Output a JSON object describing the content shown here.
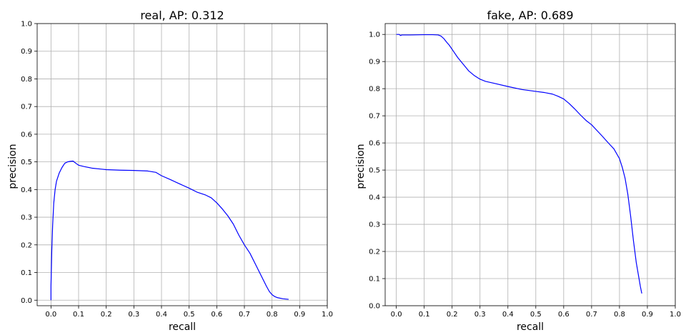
{
  "chart_data": [
    {
      "type": "line",
      "title": "real, AP: 0.312",
      "xlabel": "recall",
      "ylabel": "precision",
      "xlim": [
        -0.05,
        1.0
      ],
      "ylim": [
        -0.02,
        1.0
      ],
      "grid": true,
      "x_ticks": [
        0.0,
        0.1,
        0.2,
        0.3,
        0.4,
        0.5,
        0.6,
        0.7,
        0.8,
        0.9,
        1.0
      ],
      "y_ticks": [
        0.0,
        0.1,
        0.2,
        0.3,
        0.4,
        0.5,
        0.6,
        0.7,
        0.8,
        0.9,
        1.0
      ],
      "x_tick_labels": [
        "0.0",
        "0.1",
        "0.2",
        "0.3",
        "0.4",
        "0.5",
        "0.6",
        "0.7",
        "0.8",
        "0.9",
        "1.0"
      ],
      "y_tick_labels": [
        "0.0",
        "0.1",
        "0.2",
        "0.3",
        "0.4",
        "0.5",
        "0.6",
        "0.7",
        "0.8",
        "0.9",
        "1.0"
      ],
      "series": [
        {
          "color": "#0000ff",
          "x": [
            0.0,
            0.0,
            0.003,
            0.006,
            0.01,
            0.015,
            0.02,
            0.03,
            0.04,
            0.05,
            0.06,
            0.07,
            0.08,
            0.09,
            0.1,
            0.12,
            0.15,
            0.18,
            0.2,
            0.25,
            0.3,
            0.35,
            0.38,
            0.4,
            0.43,
            0.46,
            0.5,
            0.53,
            0.56,
            0.58,
            0.6,
            0.62,
            0.64,
            0.66,
            0.68,
            0.7,
            0.72,
            0.74,
            0.76,
            0.78,
            0.79,
            0.8,
            0.81,
            0.82,
            0.84,
            0.86
          ],
          "y": [
            0.0,
            0.05,
            0.18,
            0.27,
            0.35,
            0.4,
            0.43,
            0.46,
            0.48,
            0.495,
            0.5,
            0.502,
            0.503,
            0.495,
            0.488,
            0.483,
            0.477,
            0.474,
            0.472,
            0.47,
            0.469,
            0.467,
            0.462,
            0.45,
            0.437,
            0.423,
            0.405,
            0.39,
            0.38,
            0.37,
            0.352,
            0.33,
            0.305,
            0.275,
            0.235,
            0.2,
            0.17,
            0.13,
            0.09,
            0.05,
            0.032,
            0.02,
            0.013,
            0.009,
            0.005,
            0.003
          ]
        }
      ]
    },
    {
      "type": "line",
      "title": "fake, AP: 0.689",
      "xlabel": "recall",
      "ylabel": "precision",
      "xlim": [
        -0.04,
        1.0
      ],
      "ylim": [
        0.0,
        1.04
      ],
      "grid": true,
      "x_ticks": [
        0.0,
        0.1,
        0.2,
        0.3,
        0.4,
        0.5,
        0.6,
        0.7,
        0.8,
        0.9,
        1.0
      ],
      "y_ticks": [
        0.0,
        0.1,
        0.2,
        0.3,
        0.4,
        0.5,
        0.6,
        0.7,
        0.8,
        0.9,
        1.0
      ],
      "x_tick_labels": [
        "0.0",
        "0.1",
        "0.2",
        "0.3",
        "0.4",
        "0.5",
        "0.6",
        "0.7",
        "0.8",
        "0.9",
        "1.0"
      ],
      "y_tick_labels": [
        "0.0",
        "0.1",
        "0.2",
        "0.3",
        "0.4",
        "0.5",
        "0.6",
        "0.7",
        "0.8",
        "0.9",
        "1.0"
      ],
      "series": [
        {
          "color": "#0000ff",
          "x": [
            0.0,
            0.01,
            0.015,
            0.02,
            0.05,
            0.1,
            0.13,
            0.15,
            0.16,
            0.17,
            0.18,
            0.19,
            0.2,
            0.21,
            0.22,
            0.24,
            0.26,
            0.28,
            0.3,
            0.32,
            0.35,
            0.4,
            0.45,
            0.5,
            0.53,
            0.56,
            0.58,
            0.6,
            0.62,
            0.64,
            0.66,
            0.68,
            0.7,
            0.72,
            0.74,
            0.76,
            0.78,
            0.8,
            0.81,
            0.82,
            0.83,
            0.84,
            0.85,
            0.86,
            0.87,
            0.875,
            0.88
          ],
          "y": [
            1.0,
            1.0,
            0.996,
            0.998,
            0.998,
            0.999,
            0.999,
            0.998,
            0.994,
            0.985,
            0.972,
            0.96,
            0.945,
            0.93,
            0.915,
            0.89,
            0.865,
            0.848,
            0.835,
            0.827,
            0.82,
            0.808,
            0.797,
            0.79,
            0.786,
            0.78,
            0.772,
            0.762,
            0.745,
            0.725,
            0.703,
            0.683,
            0.667,
            0.645,
            0.623,
            0.6,
            0.578,
            0.542,
            0.51,
            0.47,
            0.41,
            0.33,
            0.24,
            0.16,
            0.1,
            0.07,
            0.045
          ]
        }
      ]
    }
  ]
}
